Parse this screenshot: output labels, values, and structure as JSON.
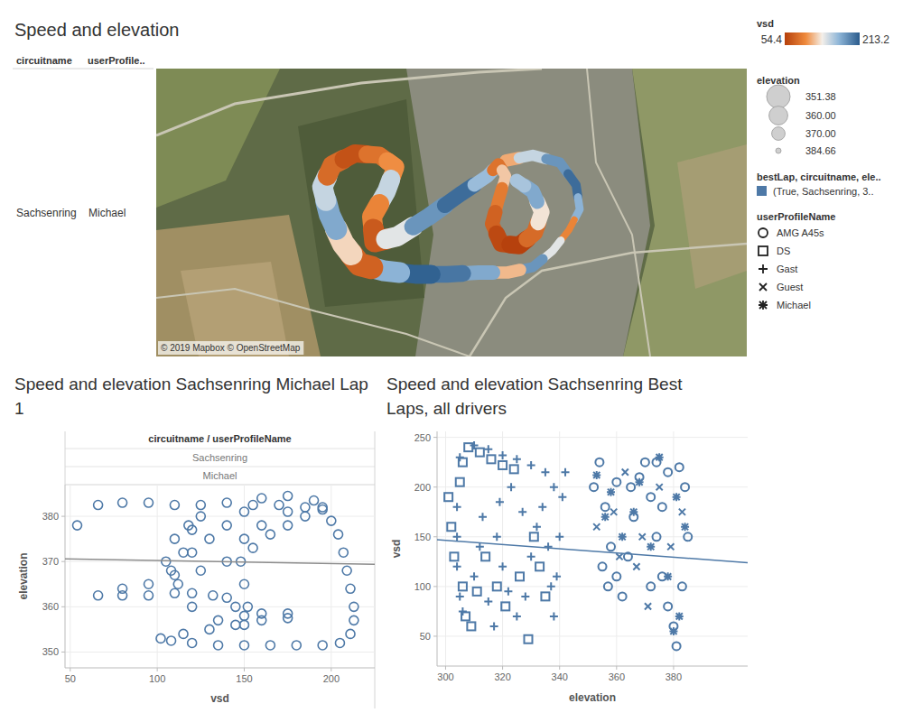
{
  "chart_data": [
    {
      "type": "map",
      "title": "Speed and elevation",
      "header": [
        "circuitname",
        "userProfile.."
      ],
      "row": [
        "Sachsenring",
        "Michael"
      ],
      "attribution": "© 2019 Mapbox © OpenStreetMap",
      "xlim": [
        0,
        1308
      ],
      "ylim": [
        0,
        638
      ],
      "x": [
        774,
        834,
        894,
        930,
        938,
        914,
        878,
        834,
        778,
        714,
        644,
        574,
        504,
        450,
        414,
        384,
        368,
        390,
        440,
        494,
        530,
        510,
        478,
        484,
        534,
        604,
        674,
        734,
        758,
        774,
        758,
        744,
        764,
        804,
        838,
        854,
        834,
        798
      ],
      "y": [
        434,
        446,
        430,
        380,
        326,
        280,
        234,
        198,
        186,
        186,
        182,
        182,
        190,
        204,
        250,
        314,
        376,
        424,
        450,
        446,
        420,
        366,
        310,
        254,
        266,
        310,
        360,
        400,
        426,
        400,
        346,
        294,
        250,
        246,
        274,
        320,
        366,
        390
      ],
      "values": [
        110,
        150,
        185,
        205,
        170,
        95,
        140,
        185,
        115,
        175,
        200,
        210,
        170,
        75,
        125,
        175,
        150,
        80,
        65,
        85,
        100,
        150,
        95,
        70,
        140,
        185,
        205,
        165,
        85,
        120,
        90,
        75,
        60,
        55,
        80,
        130,
        175,
        160
      ],
      "elevation": [
        372,
        374,
        376,
        378,
        380,
        382,
        380,
        376,
        372,
        368,
        364,
        360,
        356,
        352,
        353,
        355,
        357,
        359,
        361,
        363,
        362,
        360,
        358,
        356,
        358,
        362,
        366,
        370,
        372,
        374,
        372,
        368,
        364,
        362,
        364,
        366,
        368,
        370
      ],
      "color_legend": {
        "title": "vsd",
        "range": [
          54.4,
          213.2
        ]
      },
      "size_legend": {
        "title": "elevation",
        "values": [
          351.38,
          {
            "value": 360,
            "label": "360.00"
          },
          {
            "value": 370,
            "label": "370.00"
          },
          384.66
        ]
      }
    },
    {
      "type": "scatter",
      "title": "Speed and elevation Sachsenring Michael Lap 1",
      "header": "circuitname / userProfileName",
      "row": [
        "Sachsenring",
        "Michael"
      ],
      "x_label": "vsd",
      "y_label": "elevation",
      "xlim": [
        47,
        225
      ],
      "ylim": [
        346.5,
        387
      ],
      "xticks": [
        50,
        100,
        150,
        200
      ],
      "yticks": [
        350,
        360,
        370,
        380
      ],
      "grid": true,
      "marker": "circle",
      "color": "#4e79a7",
      "x": [
        54,
        66,
        80,
        95,
        110,
        125,
        140,
        155,
        170,
        185,
        195,
        200,
        204,
        207,
        209,
        211,
        213,
        213,
        211,
        205,
        195,
        180,
        165,
        150,
        135,
        120,
        108,
        102,
        115,
        130,
        145,
        160,
        175,
        175,
        160,
        150,
        145,
        140,
        132,
        120,
        110,
        95,
        80,
        66,
        80,
        95,
        108,
        120,
        130,
        140,
        150,
        160,
        175,
        190,
        175,
        160,
        150,
        148,
        150,
        152,
        150,
        135,
        120,
        112,
        115,
        120,
        125,
        118,
        110,
        105,
        110,
        125,
        140,
        155,
        165,
        175,
        185,
        195
      ],
      "values": [
        378,
        382.5,
        383,
        383,
        382.5,
        382.5,
        383,
        382.5,
        382.5,
        382,
        381.5,
        379,
        376,
        372,
        368,
        364,
        360,
        357,
        354,
        352,
        351.5,
        351.5,
        351.5,
        351.5,
        351.5,
        352,
        352.5,
        353,
        354,
        355,
        356,
        357,
        357.5,
        358.5,
        358.5,
        358,
        360,
        362,
        362.5,
        363,
        363,
        362.5,
        362.5,
        362.5,
        364,
        365,
        368,
        372,
        375,
        378,
        381,
        384,
        384.5,
        383.5,
        381,
        378,
        375,
        370,
        365,
        360,
        356,
        357,
        360,
        365,
        372,
        377,
        380,
        378,
        375,
        370,
        367,
        368,
        370,
        373,
        376,
        378,
        380,
        382
      ],
      "trend_line": {
        "x": [
          47,
          225
        ],
        "y": [
          370.6,
          369.4
        ]
      }
    },
    {
      "type": "scatter",
      "title": "Speed and elevation Sachsenring Best Laps, all drivers",
      "x_label": "elevation",
      "y_label": "vsd",
      "xlim": [
        297,
        406
      ],
      "ylim": [
        20,
        256
      ],
      "xticks": [
        300,
        320,
        340,
        360,
        380
      ],
      "yticks": [
        50,
        100,
        150,
        200,
        250
      ],
      "grid": true,
      "color": "#4e79a7",
      "legend_title": "userProfileName",
      "color_legend": {
        "title": "bestLap, circuitname, ele..",
        "label": "(True, Sachsenring, 3.."
      },
      "series": [
        {
          "name": "AMG A45s",
          "marker": "circle",
          "x": [
            352,
            354,
            356,
            358,
            360,
            362,
            364,
            366,
            368,
            370,
            372,
            374,
            376,
            378,
            380,
            381,
            383,
            385,
            384,
            382,
            378,
            374,
            355,
            357,
            360,
            365,
            372,
            376
          ],
          "values": [
            200,
            225,
            180,
            140,
            110,
            90,
            130,
            170,
            210,
            225,
            190,
            150,
            110,
            80,
            60,
            40,
            100,
            150,
            200,
            220,
            215,
            225,
            120,
            100,
            205,
            200,
            100,
            180
          ]
        },
        {
          "name": "DS",
          "marker": "square",
          "x": [
            301,
            302,
            303,
            305,
            306,
            308,
            312,
            316,
            320,
            324,
            306,
            307,
            309,
            311,
            314,
            318,
            321,
            326,
            329,
            331,
            333,
            335
          ],
          "values": [
            190,
            160,
            130,
            205,
            225,
            240,
            235,
            228,
            222,
            218,
            100,
            70,
            60,
            95,
            130,
            100,
            80,
            110,
            47,
            150,
            120,
            90
          ]
        },
        {
          "name": "Gast",
          "marker": "plus",
          "x": [
            305,
            310,
            315,
            320,
            325,
            330,
            335,
            338,
            304,
            304,
            304,
            305,
            306,
            310,
            312,
            313,
            318,
            320,
            322,
            325,
            328,
            330,
            332,
            334,
            336,
            337,
            338,
            339,
            340,
            341,
            342,
            315,
            317,
            327,
            323,
            319
          ],
          "values": [
            230,
            242,
            238,
            232,
            228,
            222,
            215,
            200,
            180,
            150,
            120,
            90,
            75,
            110,
            140,
            170,
            150,
            120,
            95,
            70,
            90,
            130,
            160,
            180,
            140,
            100,
            70,
            110,
            150,
            190,
            215,
            85,
            60,
            175,
            200,
            185
          ]
        },
        {
          "name": "Guest",
          "marker": "x",
          "x": [
            353,
            359,
            363,
            367,
            371,
            375,
            379,
            383,
            369,
            361
          ],
          "values": [
            160,
            175,
            215,
            120,
            80,
            200,
            140,
            175,
            150,
            130
          ]
        },
        {
          "name": "Michael",
          "marker": "asterisk",
          "x": [
            380,
            382,
            378,
            372,
            366,
            358,
            353,
            356,
            362,
            368,
            375,
            381,
            384
          ],
          "values": [
            55,
            70,
            110,
            140,
            175,
            195,
            212,
            170,
            150,
            205,
            230,
            190,
            160
          ]
        }
      ],
      "trend_line": {
        "x": [
          297,
          406
        ],
        "y": [
          147,
          124
        ]
      }
    }
  ]
}
